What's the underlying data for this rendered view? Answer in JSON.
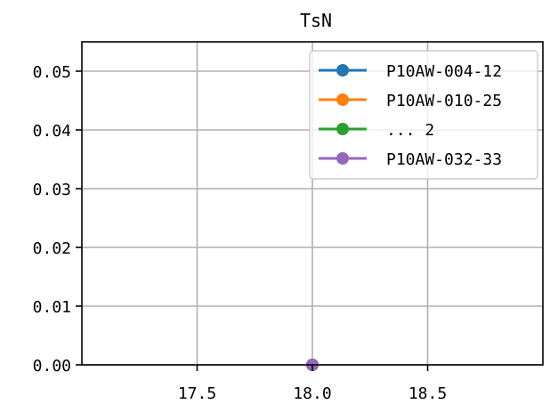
{
  "chart_data": {
    "type": "line",
    "title": "TsN",
    "xlabel": "",
    "ylabel": "",
    "xlim": [
      17.0,
      19.0
    ],
    "ylim": [
      0.0,
      0.055
    ],
    "grid": true,
    "legend_position": "top-right",
    "x_ticks": [
      17.5,
      18.0,
      18.5
    ],
    "x_tick_labels": [
      "17.5",
      "18.0",
      "18.5"
    ],
    "y_ticks": [
      0.0,
      0.01,
      0.02,
      0.03,
      0.04,
      0.05
    ],
    "y_tick_labels": [
      "0.00",
      "0.01",
      "0.02",
      "0.03",
      "0.04",
      "0.05"
    ],
    "series": [
      {
        "name": "P10AW-004-12",
        "color": "#1f77b4",
        "x": [
          18.0
        ],
        "y": [
          0.0
        ]
      },
      {
        "name": "P10AW-010-25",
        "color": "#ff7f0e",
        "x": [
          18.0
        ],
        "y": [
          0.0
        ]
      },
      {
        "name": "... 2",
        "color": "#2ca02c",
        "x": [
          18.0
        ],
        "y": [
          0.0
        ]
      },
      {
        "name": "P10AW-032-33",
        "color": "#9467bd",
        "x": [
          18.0
        ],
        "y": [
          0.0
        ]
      }
    ]
  }
}
